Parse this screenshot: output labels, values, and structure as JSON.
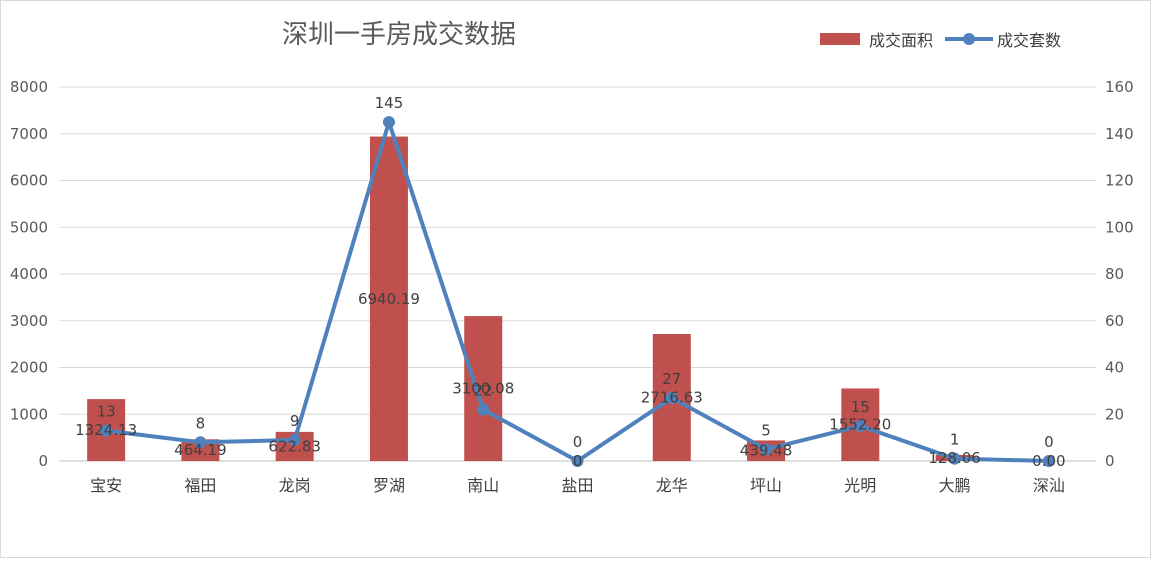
{
  "chart_data": {
    "type": "bar",
    "title": "深圳一手房成交数据",
    "categories": [
      "宝安",
      "福田",
      "龙岗",
      "罗湖",
      "南山",
      "盐田",
      "龙华",
      "坪山",
      "光明",
      "大鹏",
      "深汕"
    ],
    "series": [
      {
        "name": "成交面积",
        "type": "bar",
        "axis": "left",
        "values": [
          1324.13,
          464.19,
          622.83,
          6940.19,
          3100.08,
          0,
          2716.63,
          439.48,
          1552.2,
          128.06,
          0.0
        ],
        "labels": [
          "1324.13",
          "464.19",
          "622.83",
          "6940.19",
          "3100.08",
          "0",
          "2716.63",
          "439.48",
          "1552.20",
          "128.06",
          "0.00"
        ],
        "color": "#c0504d"
      },
      {
        "name": "成交套数",
        "type": "line",
        "axis": "right",
        "values": [
          13,
          8,
          9,
          145,
          22,
          0,
          27,
          5,
          15,
          1,
          0
        ],
        "labels": [
          "13",
          "8",
          "9",
          "145",
          "22",
          "0",
          "27",
          "5",
          "15",
          "1",
          "0"
        ],
        "color": "#4f81bd"
      }
    ],
    "y_left": {
      "min": 0,
      "max": 8000,
      "ticks": [
        "0",
        "1000",
        "2000",
        "3000",
        "4000",
        "5000",
        "6000",
        "7000",
        "8000"
      ]
    },
    "y_right": {
      "min": 0,
      "max": 160,
      "ticks": [
        "0",
        "20",
        "40",
        "60",
        "80",
        "100",
        "120",
        "140",
        "160"
      ]
    },
    "grid": true,
    "legend_position": "top-right"
  }
}
